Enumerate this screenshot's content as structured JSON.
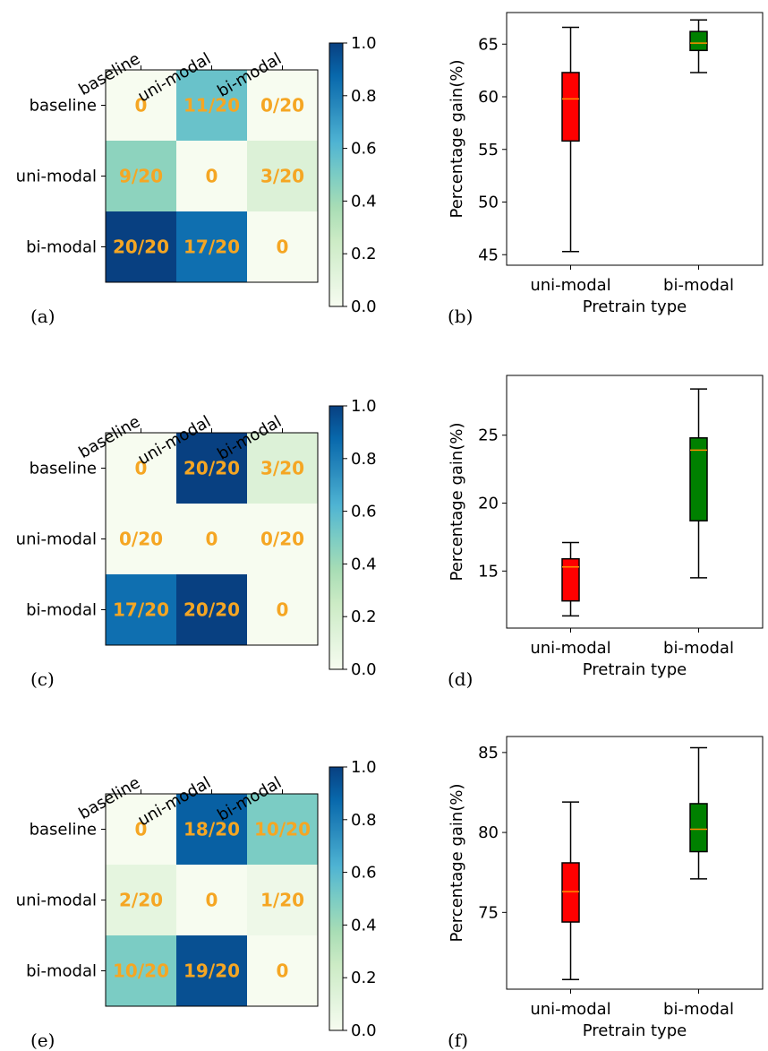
{
  "figure": {
    "heatmap_cmap_name": "GnBu",
    "cell_text_color": "#f5a623",
    "median_color": "#ff8c00"
  },
  "chart_data": [
    {
      "type": "heatmap",
      "panel_label": "(a)",
      "row_labels": [
        "baseline",
        "uni-modal",
        "bi-modal"
      ],
      "col_labels": [
        "baseline",
        "uni-modal",
        "bi-modal"
      ],
      "values": [
        [
          0,
          0.55,
          0
        ],
        [
          0.45,
          0,
          0.15
        ],
        [
          1.0,
          0.85,
          0
        ]
      ],
      "cell_text": [
        [
          "0",
          "11/20",
          "0/20"
        ],
        [
          "9/20",
          "0",
          "3/20"
        ],
        [
          "20/20",
          "17/20",
          "0"
        ]
      ],
      "colorbar": {
        "min": 0.0,
        "max": 1.0,
        "ticks": [
          "0.0",
          "0.2",
          "0.4",
          "0.6",
          "0.8",
          "1.0"
        ]
      }
    },
    {
      "type": "box",
      "panel_label": "(b)",
      "xlabel": "Pretrain type",
      "ylabel": "Percentage gain(%)",
      "categories": [
        "uni-modal",
        "bi-modal"
      ],
      "colors": [
        "#ff0000",
        "#008000"
      ],
      "ylim": [
        44,
        68
      ],
      "yticks": [
        45,
        50,
        55,
        60,
        65
      ],
      "boxes": [
        {
          "min": 45.3,
          "q1": 55.8,
          "median": 59.8,
          "q3": 62.3,
          "max": 66.6
        },
        {
          "min": 62.3,
          "q1": 64.4,
          "median": 65.1,
          "q3": 66.2,
          "max": 67.3
        }
      ]
    },
    {
      "type": "heatmap",
      "panel_label": "(c)",
      "row_labels": [
        "baseline",
        "uni-modal",
        "bi-modal"
      ],
      "col_labels": [
        "baseline",
        "uni-modal",
        "bi-modal"
      ],
      "values": [
        [
          0,
          1.0,
          0.15
        ],
        [
          0,
          0,
          0
        ],
        [
          0.85,
          1.0,
          0
        ]
      ],
      "cell_text": [
        [
          "0",
          "20/20",
          "3/20"
        ],
        [
          "0/20",
          "0",
          "0/20"
        ],
        [
          "17/20",
          "20/20",
          "0"
        ]
      ],
      "colorbar": {
        "min": 0.0,
        "max": 1.0,
        "ticks": [
          "0.0",
          "0.2",
          "0.4",
          "0.6",
          "0.8",
          "1.0"
        ]
      }
    },
    {
      "type": "box",
      "panel_label": "(d)",
      "xlabel": "Pretrain type",
      "ylabel": "Percentage gain(%)",
      "categories": [
        "uni-modal",
        "bi-modal"
      ],
      "colors": [
        "#ff0000",
        "#008000"
      ],
      "ylim": [
        10.8,
        29.4
      ],
      "yticks": [
        15,
        20,
        25
      ],
      "boxes": [
        {
          "min": 11.7,
          "q1": 12.8,
          "median": 15.3,
          "q3": 15.9,
          "max": 17.1
        },
        {
          "min": 14.5,
          "q1": 18.7,
          "median": 23.9,
          "q3": 24.8,
          "max": 28.4
        }
      ]
    },
    {
      "type": "heatmap",
      "panel_label": "(e)",
      "row_labels": [
        "baseline",
        "uni-modal",
        "bi-modal"
      ],
      "col_labels": [
        "baseline",
        "uni-modal",
        "bi-modal"
      ],
      "values": [
        [
          0,
          0.9,
          0.5
        ],
        [
          0.1,
          0,
          0.05
        ],
        [
          0.5,
          0.95,
          0
        ]
      ],
      "cell_text": [
        [
          "0",
          "18/20",
          "10/20"
        ],
        [
          "2/20",
          "0",
          "1/20"
        ],
        [
          "10/20",
          "19/20",
          "0"
        ]
      ],
      "colorbar": {
        "min": 0.0,
        "max": 1.0,
        "ticks": [
          "0.0",
          "0.2",
          "0.4",
          "0.6",
          "0.8",
          "1.0"
        ]
      }
    },
    {
      "type": "box",
      "panel_label": "(f)",
      "xlabel": "Pretrain type",
      "ylabel": "Percentage gain(%)",
      "categories": [
        "uni-modal",
        "bi-modal"
      ],
      "colors": [
        "#ff0000",
        "#008000"
      ],
      "ylim": [
        70.2,
        86.0
      ],
      "yticks": [
        75,
        80,
        85
      ],
      "boxes": [
        {
          "min": 70.8,
          "q1": 74.4,
          "median": 76.3,
          "q3": 78.1,
          "max": 81.9
        },
        {
          "min": 77.1,
          "q1": 78.8,
          "median": 80.2,
          "q3": 81.8,
          "max": 85.3
        }
      ]
    }
  ]
}
